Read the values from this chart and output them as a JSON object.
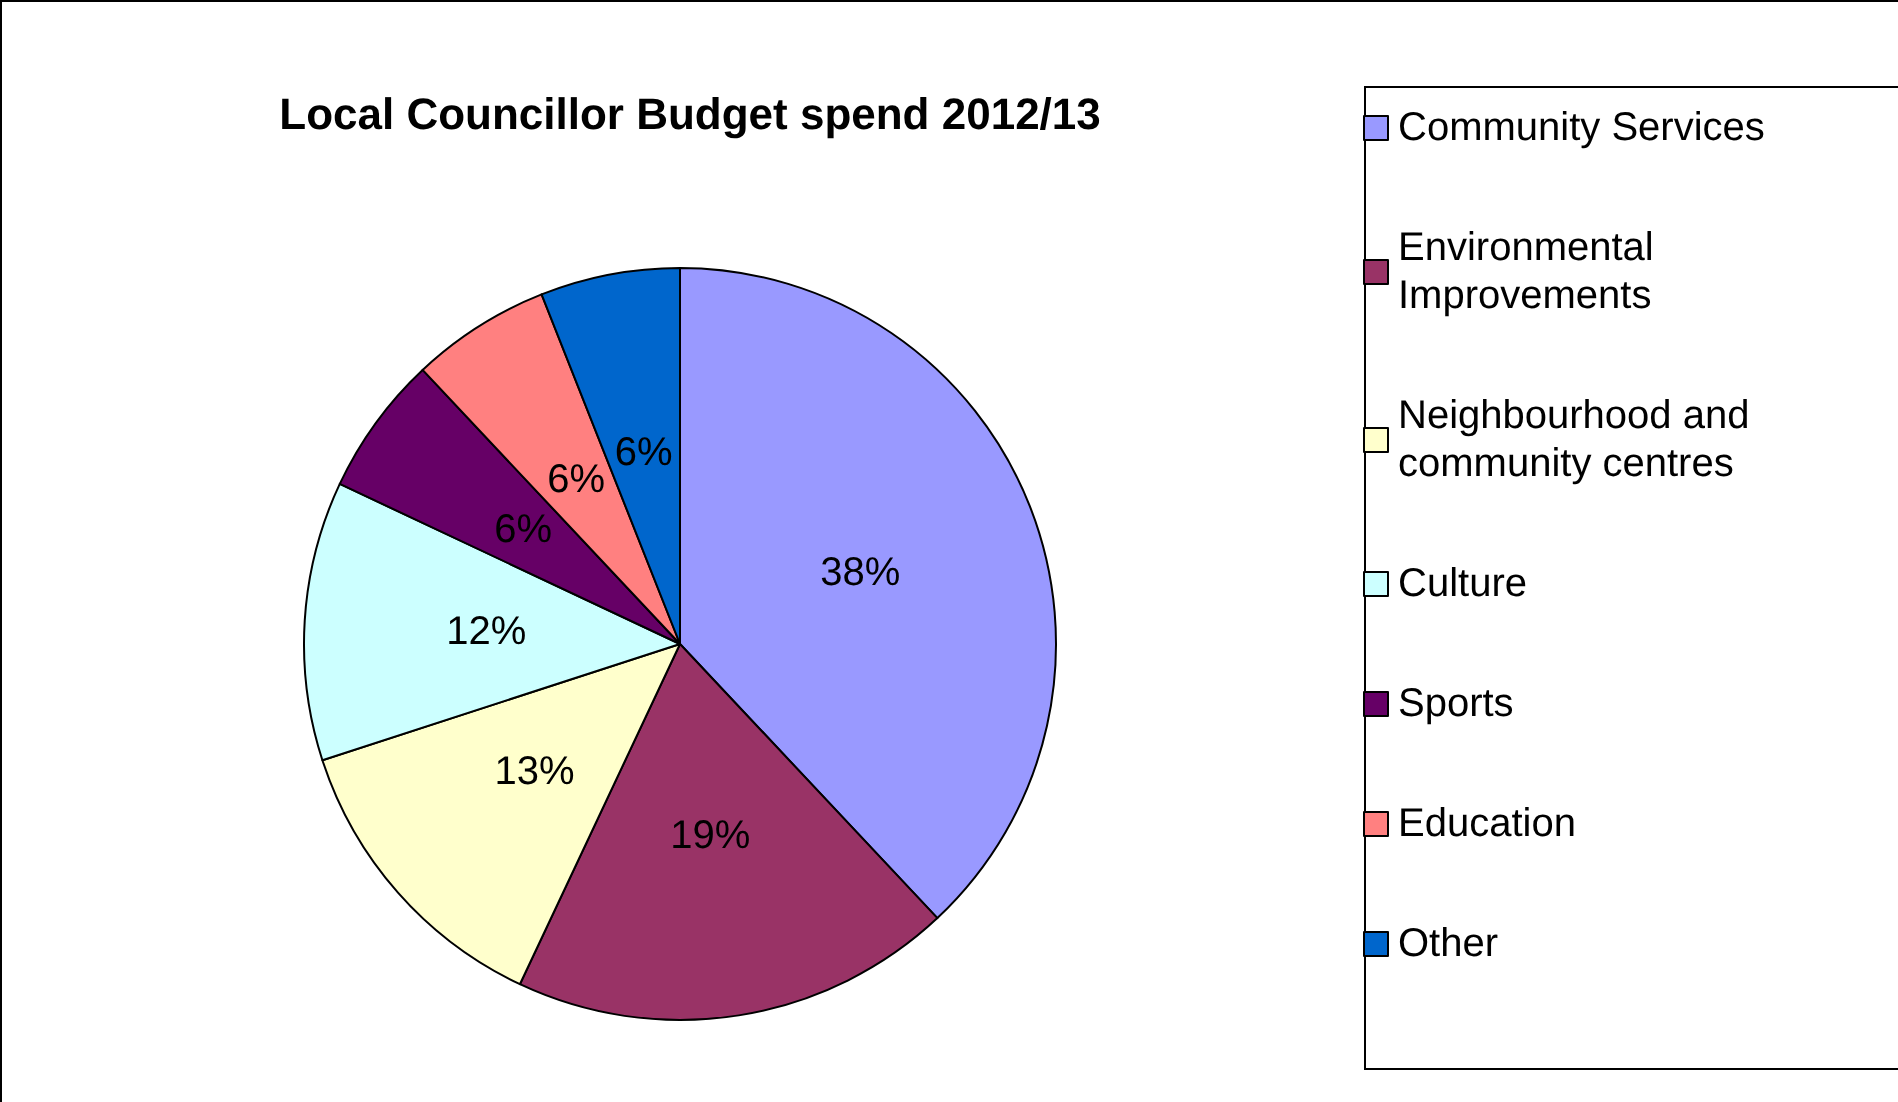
{
  "chart_data": {
    "type": "pie",
    "title": "Local Councillor Budget spend 2012/13",
    "categories": [
      "Community Services",
      "Environmental Improvements",
      "Neighbourhood and community centres",
      "Culture",
      "Sports",
      "Education",
      "Other"
    ],
    "values": [
      38,
      19,
      13,
      12,
      6,
      6,
      6
    ],
    "colors": [
      "#9999ff",
      "#993366",
      "#ffffcc",
      "#ccffff",
      "#660066",
      "#ff8080",
      "#0066cc"
    ],
    "value_labels": [
      "38%",
      "19%",
      "13%",
      "12%",
      "6%",
      "6%",
      "6%"
    ],
    "legend": "right"
  }
}
